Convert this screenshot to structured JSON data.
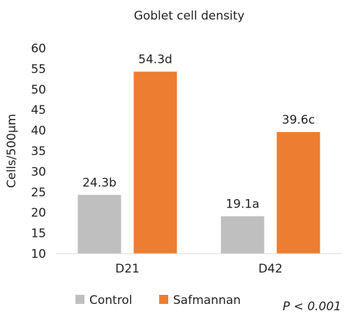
{
  "chart_data": {
    "type": "bar",
    "title": "Goblet cell density",
    "ylabel": "Cells/500µm",
    "xlabel": "",
    "categories": [
      "D21",
      "D42"
    ],
    "ylim": [
      10,
      60
    ],
    "yticks": [
      10,
      15,
      20,
      25,
      30,
      35,
      40,
      45,
      50,
      55,
      60
    ],
    "grid": false,
    "legend_position": "bottom-left",
    "series": [
      {
        "name": "Control",
        "color": "#bfbfbf",
        "values": [
          24.3,
          19.1
        ],
        "labels": [
          "24.3b",
          "19.1a"
        ]
      },
      {
        "name": "Safmannan",
        "color": "#ed7d31",
        "values": [
          54.3,
          39.6
        ],
        "labels": [
          "54.3d",
          "39.6c"
        ]
      }
    ],
    "annotation": "P < 0.001"
  }
}
